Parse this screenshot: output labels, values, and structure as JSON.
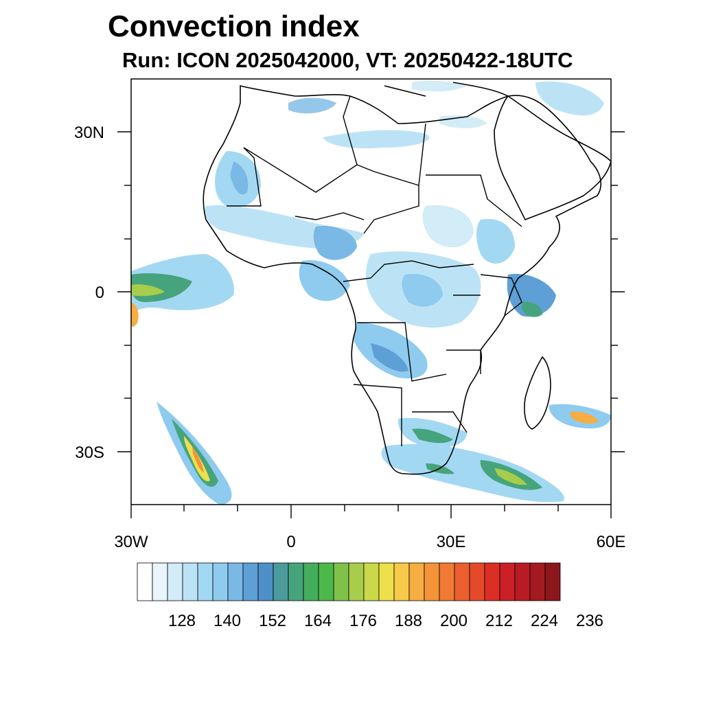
{
  "title": "Convection index",
  "subtitle": "Run: ICON 2025042000,  VT: 20250422-18UTC",
  "map": {
    "region": "Africa",
    "lon_range": [
      -30,
      60
    ],
    "lat_range": [
      -40,
      40
    ],
    "lat_ticks": [
      {
        "value": 30,
        "label": "30N"
      },
      {
        "value": 0,
        "label": "0"
      },
      {
        "value": -30,
        "label": "30S"
      }
    ],
    "lon_ticks": [
      {
        "value": -30,
        "label": "30W"
      },
      {
        "value": 0,
        "label": "0"
      },
      {
        "value": 30,
        "label": "30E"
      },
      {
        "value": 60,
        "label": "60E"
      }
    ]
  },
  "colorbar": {
    "colors": [
      "#ffffff",
      "#e8f5fc",
      "#d2ecf8",
      "#bce3f5",
      "#a3d8f3",
      "#8ecbef",
      "#7ab9e5",
      "#5e9fd5",
      "#4f8fc8",
      "#4a9b9c",
      "#46a47c",
      "#44ad5d",
      "#4db84a",
      "#7fc14b",
      "#a8cc4b",
      "#cbd84a",
      "#eee04b",
      "#f7c94a",
      "#f6ad41",
      "#f59339",
      "#f07a33",
      "#ea5f2d",
      "#e44a29",
      "#dd2e26",
      "#cc2027",
      "#b81b24",
      "#a31a20",
      "#8b171d"
    ],
    "labels": [
      "128",
      "140",
      "152",
      "164",
      "176",
      "188",
      "200",
      "212",
      "224",
      "236"
    ]
  }
}
